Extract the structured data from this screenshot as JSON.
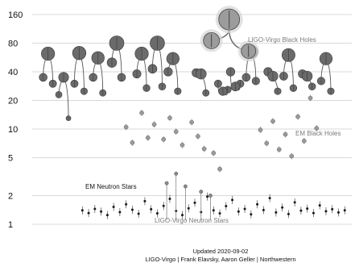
{
  "chart_data": {
    "type": "scatter",
    "title": "",
    "xlabel": "",
    "ylabel": "",
    "y_scale": "log",
    "ylim": [
      0.85,
      165
    ],
    "y_ticks": [
      1,
      2,
      5,
      10,
      20,
      40,
      80,
      160
    ],
    "y_tick_labels": [
      "1",
      "2",
      "5",
      "10",
      "20",
      "40",
      "80",
      "160"
    ],
    "grid": true,
    "annotations": {
      "ligo_bh": "LIGO-Virgo Black Holes",
      "em_bh": "EM Black Holes",
      "em_ns": "EM Neutron Stars",
      "ligo_ns": "LIGO-Virgo Neutron Stars",
      "credit_line1": "Updated 2020-09-02",
      "credit_line2": "LIGO-Virgo | Frank Elavsky, Aaron Geller | Northwestern"
    },
    "colors": {
      "grid": "#d9d9d9",
      "ligo_bh": "#6b6b6b",
      "em_bh": "#9a9a9a",
      "ligo_ns": "#8a8a8a",
      "em_ns": "#1a1a1a",
      "connector": "#555555",
      "highlight": "#9c9c9c"
    },
    "mergers": [
      {
        "x": 0.03,
        "m1": 35,
        "m2": 30,
        "mf": 62
      },
      {
        "x": 0.08,
        "m1": 23,
        "m2": 13,
        "mf": 35
      },
      {
        "x": 0.13,
        "m1": 30,
        "m2": 25,
        "mf": 63
      },
      {
        "x": 0.19,
        "m1": 35,
        "m2": 24,
        "mf": 56
      },
      {
        "x": 0.25,
        "m1": 50,
        "m2": 35,
        "mf": 80
      },
      {
        "x": 0.33,
        "m1": 38,
        "m2": 27,
        "mf": 62
      },
      {
        "x": 0.38,
        "m1": 43,
        "m2": 28,
        "mf": 80
      },
      {
        "x": 0.43,
        "m1": 40,
        "m2": 25,
        "mf": 55
      },
      {
        "x": 0.52,
        "m1": 39,
        "m2": 24,
        "mf": 38
      },
      {
        "x": 0.59,
        "m1": 30,
        "m2": 26,
        "mf": 25
      },
      {
        "x": 0.63,
        "m1": 40,
        "m2": 30,
        "mf": 28
      },
      {
        "x": 0.68,
        "m1": 35,
        "m2": 32,
        "mf": 65
      },
      {
        "x": 0.75,
        "m1": 40,
        "m2": 25,
        "mf": 36
      },
      {
        "x": 0.8,
        "m1": 36,
        "m2": 27,
        "mf": 60
      },
      {
        "x": 0.86,
        "m1": 38,
        "m2": 28,
        "mf": 36
      },
      {
        "x": 0.92,
        "m1": 32,
        "m2": 25,
        "mf": 55
      }
    ],
    "highlight_merger": {
      "x": 0.61,
      "m1": 85,
      "m2": 66,
      "mf": 142
    },
    "em_black_holes": [
      {
        "x": 0.28,
        "y": 10.5
      },
      {
        "x": 0.3,
        "y": 7.2
      },
      {
        "x": 0.33,
        "y": 14.8
      },
      {
        "x": 0.35,
        "y": 8.1
      },
      {
        "x": 0.37,
        "y": 11.2
      },
      {
        "x": 0.4,
        "y": 7.8
      },
      {
        "x": 0.42,
        "y": 13.1
      },
      {
        "x": 0.44,
        "y": 9.4
      },
      {
        "x": 0.46,
        "y": 6.8
      },
      {
        "x": 0.49,
        "y": 11.8
      },
      {
        "x": 0.51,
        "y": 8.4
      },
      {
        "x": 0.53,
        "y": 6.2
      },
      {
        "x": 0.56,
        "y": 5.6
      },
      {
        "x": 0.58,
        "y": 3.8
      },
      {
        "x": 0.71,
        "y": 9.8
      },
      {
        "x": 0.73,
        "y": 7.1
      },
      {
        "x": 0.75,
        "y": 12.1
      },
      {
        "x": 0.77,
        "y": 6.1
      },
      {
        "x": 0.79,
        "y": 8.8
      },
      {
        "x": 0.81,
        "y": 5.2
      },
      {
        "x": 0.83,
        "y": 13.5
      },
      {
        "x": 0.85,
        "y": 7.5
      },
      {
        "x": 0.87,
        "y": 21.2
      },
      {
        "x": 0.89,
        "y": 10.2
      }
    ],
    "em_neutron_stars": [
      {
        "x": 0.14,
        "y": 1.4
      },
      {
        "x": 0.16,
        "y": 1.31
      },
      {
        "x": 0.18,
        "y": 1.45
      },
      {
        "x": 0.2,
        "y": 1.36
      },
      {
        "x": 0.22,
        "y": 1.25
      },
      {
        "x": 0.24,
        "y": 1.52
      },
      {
        "x": 0.26,
        "y": 1.34
      },
      {
        "x": 0.28,
        "y": 1.62
      },
      {
        "x": 0.3,
        "y": 1.42
      },
      {
        "x": 0.32,
        "y": 1.29
      },
      {
        "x": 0.34,
        "y": 1.75
      },
      {
        "x": 0.36,
        "y": 1.44
      },
      {
        "x": 0.38,
        "y": 1.3
      },
      {
        "x": 0.4,
        "y": 1.56
      },
      {
        "x": 0.42,
        "y": 1.85
      },
      {
        "x": 0.44,
        "y": 1.38
      },
      {
        "x": 0.46,
        "y": 1.25
      },
      {
        "x": 0.48,
        "y": 1.47
      },
      {
        "x": 0.5,
        "y": 1.68
      },
      {
        "x": 0.52,
        "y": 1.34
      },
      {
        "x": 0.54,
        "y": 1.95
      },
      {
        "x": 0.56,
        "y": 1.4
      },
      {
        "x": 0.58,
        "y": 1.3
      },
      {
        "x": 0.6,
        "y": 1.55
      },
      {
        "x": 0.62,
        "y": 1.8
      },
      {
        "x": 0.64,
        "y": 1.36
      },
      {
        "x": 0.66,
        "y": 1.45
      },
      {
        "x": 0.68,
        "y": 1.27
      },
      {
        "x": 0.7,
        "y": 1.62
      },
      {
        "x": 0.72,
        "y": 1.41
      },
      {
        "x": 0.74,
        "y": 1.88
      },
      {
        "x": 0.76,
        "y": 1.33
      },
      {
        "x": 0.78,
        "y": 1.5
      },
      {
        "x": 0.8,
        "y": 1.28
      },
      {
        "x": 0.82,
        "y": 1.7
      },
      {
        "x": 0.84,
        "y": 1.39
      },
      {
        "x": 0.86,
        "y": 1.46
      },
      {
        "x": 0.88,
        "y": 1.31
      },
      {
        "x": 0.9,
        "y": 1.58
      },
      {
        "x": 0.92,
        "y": 1.37
      },
      {
        "x": 0.94,
        "y": 1.44
      },
      {
        "x": 0.96,
        "y": 1.33
      },
      {
        "x": 0.98,
        "y": 1.4
      }
    ],
    "ligo_neutron_stars": [
      {
        "x": 0.41,
        "y": 2.7
      },
      {
        "x": 0.44,
        "y": 3.4
      },
      {
        "x": 0.47,
        "y": 2.5
      },
      {
        "x": 0.52,
        "y": 2.2
      },
      {
        "x": 0.55,
        "y": 2.0
      }
    ]
  }
}
